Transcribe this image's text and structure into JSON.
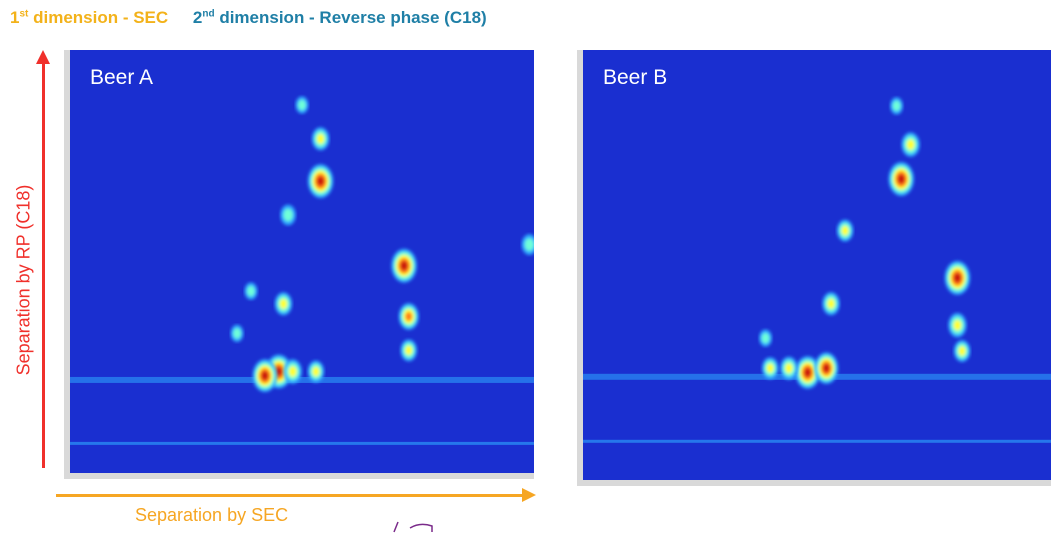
{
  "header": {
    "dim1_num": "1",
    "dim1_sup": "st",
    "dim1_text": " dimension - SEC",
    "dim2_num": "2",
    "dim2_sup": "nd",
    "dim2_text": " dimension - Reverse phase (C18)",
    "dim1_color": "#F3B21A",
    "dim2_color": "#1F7FA6"
  },
  "y_axis": {
    "label": "Separation by RP (C18)",
    "color": "#F0302B"
  },
  "x_axis": {
    "label": "Separation by SEC",
    "color": "#F6A623"
  },
  "chart_data": [
    {
      "type": "heatmap",
      "title": "Beer A",
      "xlabel": "Separation by SEC",
      "ylabel": "Separation by RP (C18)",
      "xlim": [
        0,
        1
      ],
      "ylim": [
        0,
        1
      ],
      "colorscale": [
        "#1A2FD0",
        "#2FA8FF",
        "#6FFFD8",
        "#FFFF33",
        "#FF7A1A",
        "#C80F0F"
      ],
      "peaks": [
        {
          "x": 0.45,
          "y": 0.24,
          "intensity": 1.0
        },
        {
          "x": 0.42,
          "y": 0.23,
          "intensity": 0.95
        },
        {
          "x": 0.48,
          "y": 0.24,
          "intensity": 0.6
        },
        {
          "x": 0.53,
          "y": 0.24,
          "intensity": 0.5
        },
        {
          "x": 0.46,
          "y": 0.4,
          "intensity": 0.55
        },
        {
          "x": 0.47,
          "y": 0.61,
          "intensity": 0.45
        },
        {
          "x": 0.54,
          "y": 0.69,
          "intensity": 1.0
        },
        {
          "x": 0.54,
          "y": 0.79,
          "intensity": 0.55
        },
        {
          "x": 0.5,
          "y": 0.87,
          "intensity": 0.3
        },
        {
          "x": 0.72,
          "y": 0.49,
          "intensity": 1.0
        },
        {
          "x": 0.73,
          "y": 0.37,
          "intensity": 0.7
        },
        {
          "x": 0.73,
          "y": 0.29,
          "intensity": 0.5
        },
        {
          "x": 0.99,
          "y": 0.54,
          "intensity": 0.45
        },
        {
          "x": 0.36,
          "y": 0.33,
          "intensity": 0.3
        },
        {
          "x": 0.39,
          "y": 0.43,
          "intensity": 0.3
        }
      ]
    },
    {
      "type": "heatmap",
      "title": "Beer B",
      "xlabel": "Separation by SEC",
      "ylabel": "Separation by RP (C18)",
      "xlim": [
        0,
        1
      ],
      "ylim": [
        0,
        1
      ],
      "colorscale": [
        "#1A2FD0",
        "#2FA8FF",
        "#6FFFD8",
        "#FFFF33",
        "#FF7A1A",
        "#C80F0F"
      ],
      "peaks": [
        {
          "x": 0.48,
          "y": 0.25,
          "intensity": 0.95
        },
        {
          "x": 0.52,
          "y": 0.26,
          "intensity": 0.9
        },
        {
          "x": 0.44,
          "y": 0.26,
          "intensity": 0.55
        },
        {
          "x": 0.4,
          "y": 0.26,
          "intensity": 0.5
        },
        {
          "x": 0.53,
          "y": 0.41,
          "intensity": 0.55
        },
        {
          "x": 0.56,
          "y": 0.58,
          "intensity": 0.5
        },
        {
          "x": 0.68,
          "y": 0.7,
          "intensity": 1.0
        },
        {
          "x": 0.7,
          "y": 0.78,
          "intensity": 0.6
        },
        {
          "x": 0.67,
          "y": 0.87,
          "intensity": 0.3
        },
        {
          "x": 0.8,
          "y": 0.47,
          "intensity": 1.0
        },
        {
          "x": 0.8,
          "y": 0.36,
          "intensity": 0.6
        },
        {
          "x": 0.81,
          "y": 0.3,
          "intensity": 0.5
        },
        {
          "x": 0.39,
          "y": 0.33,
          "intensity": 0.3
        }
      ]
    }
  ]
}
